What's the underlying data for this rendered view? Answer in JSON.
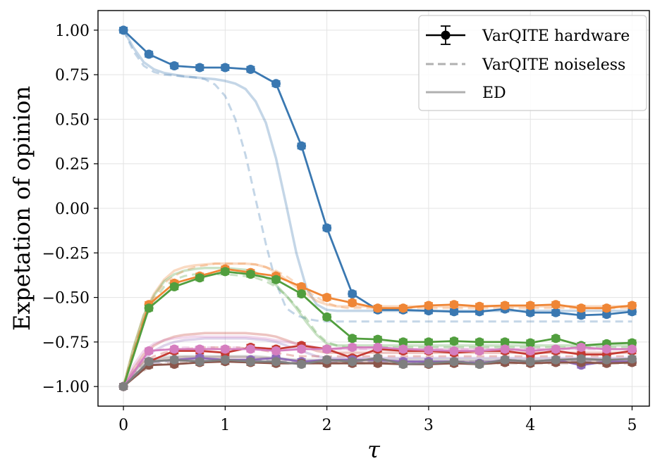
{
  "chart_data": {
    "type": "line",
    "xlabel": "τ",
    "ylabel": "Expetation of opinion",
    "xlim": [
      -0.25,
      5.17
    ],
    "ylim": [
      -1.11,
      1.11
    ],
    "grid": true,
    "x_ticks": [
      {
        "value": 0,
        "label": "0"
      },
      {
        "value": 1,
        "label": "1"
      },
      {
        "value": 2,
        "label": "2"
      },
      {
        "value": 3,
        "label": "3"
      },
      {
        "value": 4,
        "label": "4"
      },
      {
        "value": 5,
        "label": "5"
      }
    ],
    "y_ticks": [
      {
        "value": 1.0,
        "label": "1.00"
      },
      {
        "value": 0.75,
        "label": "0.75"
      },
      {
        "value": 0.5,
        "label": "0.50"
      },
      {
        "value": 0.25,
        "label": "0.25"
      },
      {
        "value": 0.0,
        "label": "0.00"
      },
      {
        "value": -0.25,
        "label": "−0.25"
      },
      {
        "value": -0.5,
        "label": "−0.50"
      },
      {
        "value": -0.75,
        "label": "−0.75"
      },
      {
        "value": -1.0,
        "label": "−1.00"
      }
    ],
    "legend": {
      "placement": "top-right",
      "entries": [
        {
          "label": "VarQITE hardware",
          "style": "marker-errorbar",
          "color": "#000000"
        },
        {
          "label": "VarQITE noiseless",
          "style": "dashed",
          "color": "#b0b0b0"
        },
        {
          "label": "ED",
          "style": "solid-light",
          "color": "#b0b0b0"
        }
      ]
    },
    "x": [
      0,
      0.25,
      0.5,
      0.75,
      1.0,
      1.25,
      1.5,
      1.75,
      2.0,
      2.25,
      2.5,
      2.75,
      3.0,
      3.25,
      3.5,
      3.75,
      4.0,
      4.25,
      4.5,
      4.75,
      5.0
    ],
    "x_dense": [
      0,
      0.1,
      0.2,
      0.3,
      0.4,
      0.5,
      0.6,
      0.7,
      0.8,
      0.9,
      1.0,
      1.1,
      1.2,
      1.3,
      1.4,
      1.5,
      1.6,
      1.7,
      1.8,
      1.9,
      2.0,
      2.1,
      2.2,
      2.3,
      2.4,
      2.5,
      2.75,
      3.0,
      3.5,
      4.0,
      4.5,
      5.0
    ],
    "series": [
      {
        "color": "#3a78b1",
        "hardware": [
          1.0,
          0.865,
          0.8,
          0.79,
          0.79,
          0.78,
          0.7,
          0.35,
          -0.11,
          -0.48,
          -0.57,
          -0.57,
          -0.575,
          -0.58,
          -0.58,
          -0.565,
          -0.585,
          -0.585,
          -0.6,
          -0.595,
          -0.58
        ],
        "noiseless": [
          1.0,
          0.88,
          0.8,
          0.765,
          0.75,
          0.745,
          0.74,
          0.735,
          0.725,
          0.695,
          0.63,
          0.5,
          0.3,
          0.05,
          -0.2,
          -0.42,
          -0.56,
          -0.6,
          -0.62,
          -0.63,
          -0.635,
          -0.635,
          -0.635,
          -0.635,
          -0.635,
          -0.635,
          -0.635,
          -0.635,
          -0.635,
          -0.635,
          -0.635,
          -0.635
        ],
        "ed": [
          1.0,
          0.9,
          0.82,
          0.78,
          0.76,
          0.75,
          0.74,
          0.735,
          0.73,
          0.725,
          0.715,
          0.7,
          0.67,
          0.6,
          0.48,
          0.28,
          0.02,
          -0.25,
          -0.45,
          -0.54,
          -0.57,
          -0.575,
          -0.575,
          -0.575,
          -0.575,
          -0.575,
          -0.575,
          -0.575,
          -0.575,
          -0.575,
          -0.575,
          -0.575
        ]
      },
      {
        "color": "#ef8636",
        "hardware": [
          -1.0,
          -0.54,
          -0.42,
          -0.38,
          -0.34,
          -0.36,
          -0.38,
          -0.44,
          -0.5,
          -0.53,
          -0.56,
          -0.56,
          -0.545,
          -0.54,
          -0.55,
          -0.545,
          -0.545,
          -0.54,
          -0.56,
          -0.56,
          -0.545
        ],
        "noiseless": [
          -1.0,
          -0.8,
          -0.62,
          -0.5,
          -0.42,
          -0.38,
          -0.35,
          -0.33,
          -0.32,
          -0.31,
          -0.31,
          -0.31,
          -0.31,
          -0.315,
          -0.33,
          -0.35,
          -0.38,
          -0.42,
          -0.46,
          -0.5,
          -0.53,
          -0.55,
          -0.56,
          -0.56,
          -0.56,
          -0.56,
          -0.56,
          -0.56,
          -0.56,
          -0.56,
          -0.56,
          -0.56
        ],
        "ed": [
          -1.0,
          -0.78,
          -0.6,
          -0.48,
          -0.4,
          -0.35,
          -0.33,
          -0.32,
          -0.315,
          -0.31,
          -0.31,
          -0.31,
          -0.31,
          -0.315,
          -0.33,
          -0.36,
          -0.4,
          -0.44,
          -0.48,
          -0.52,
          -0.54,
          -0.55,
          -0.55,
          -0.55,
          -0.55,
          -0.55,
          -0.55,
          -0.55,
          -0.55,
          -0.55,
          -0.55,
          -0.55
        ]
      },
      {
        "color": "#519e3e",
        "hardware": [
          -1.0,
          -0.56,
          -0.44,
          -0.39,
          -0.355,
          -0.37,
          -0.4,
          -0.48,
          -0.61,
          -0.73,
          -0.735,
          -0.75,
          -0.75,
          -0.745,
          -0.75,
          -0.75,
          -0.755,
          -0.73,
          -0.77,
          -0.76,
          -0.755
        ],
        "noiseless": [
          -1.0,
          -0.8,
          -0.63,
          -0.52,
          -0.44,
          -0.4,
          -0.38,
          -0.37,
          -0.37,
          -0.37,
          -0.37,
          -0.375,
          -0.38,
          -0.39,
          -0.41,
          -0.44,
          -0.49,
          -0.55,
          -0.62,
          -0.7,
          -0.75,
          -0.77,
          -0.78,
          -0.78,
          -0.78,
          -0.78,
          -0.78,
          -0.78,
          -0.78,
          -0.78,
          -0.78,
          -0.78
        ],
        "ed": [
          -1.0,
          -0.78,
          -0.6,
          -0.49,
          -0.41,
          -0.37,
          -0.35,
          -0.34,
          -0.335,
          -0.335,
          -0.335,
          -0.34,
          -0.345,
          -0.36,
          -0.39,
          -0.43,
          -0.49,
          -0.56,
          -0.64,
          -0.71,
          -0.76,
          -0.77,
          -0.77,
          -0.77,
          -0.77,
          -0.77,
          -0.77,
          -0.77,
          -0.77,
          -0.77,
          -0.77,
          -0.77
        ]
      },
      {
        "color": "#c53a32",
        "hardware": [
          -1.0,
          -0.86,
          -0.8,
          -0.8,
          -0.81,
          -0.78,
          -0.79,
          -0.77,
          -0.79,
          -0.84,
          -0.79,
          -0.8,
          -0.8,
          -0.81,
          -0.8,
          -0.8,
          -0.82,
          -0.8,
          -0.82,
          -0.82,
          -0.8
        ],
        "noiseless": [
          -1.0,
          -0.92,
          -0.86,
          -0.83,
          -0.81,
          -0.8,
          -0.79,
          -0.785,
          -0.78,
          -0.78,
          -0.78,
          -0.78,
          -0.785,
          -0.79,
          -0.8,
          -0.81,
          -0.82,
          -0.83,
          -0.83,
          -0.83,
          -0.83,
          -0.83,
          -0.83,
          -0.83,
          -0.83,
          -0.83,
          -0.83,
          -0.83,
          -0.83,
          -0.83,
          -0.83,
          -0.83
        ],
        "ed": [
          -1.0,
          -0.9,
          -0.82,
          -0.77,
          -0.74,
          -0.72,
          -0.71,
          -0.705,
          -0.7,
          -0.7,
          -0.7,
          -0.7,
          -0.7,
          -0.705,
          -0.71,
          -0.72,
          -0.74,
          -0.76,
          -0.78,
          -0.8,
          -0.81,
          -0.81,
          -0.81,
          -0.81,
          -0.81,
          -0.81,
          -0.81,
          -0.81,
          -0.81,
          -0.81,
          -0.81,
          -0.81
        ]
      },
      {
        "color": "#8d69b8",
        "hardware": [
          -1.0,
          -0.86,
          -0.85,
          -0.84,
          -0.85,
          -0.85,
          -0.84,
          -0.86,
          -0.85,
          -0.85,
          -0.85,
          -0.86,
          -0.86,
          -0.86,
          -0.87,
          -0.85,
          -0.86,
          -0.85,
          -0.88,
          -0.86,
          -0.86
        ],
        "noiseless": [
          -1.0,
          -0.94,
          -0.89,
          -0.87,
          -0.86,
          -0.855,
          -0.85,
          -0.85,
          -0.85,
          -0.85,
          -0.85,
          -0.85,
          -0.85,
          -0.85,
          -0.855,
          -0.86,
          -0.86,
          -0.86,
          -0.86,
          -0.86,
          -0.86,
          -0.86,
          -0.86,
          -0.86,
          -0.86,
          -0.86,
          -0.86,
          -0.86,
          -0.86,
          -0.86,
          -0.86,
          -0.86
        ],
        "ed": [
          -1.0,
          -0.92,
          -0.85,
          -0.8,
          -0.77,
          -0.75,
          -0.74,
          -0.735,
          -0.73,
          -0.73,
          -0.73,
          -0.73,
          -0.73,
          -0.735,
          -0.74,
          -0.75,
          -0.77,
          -0.79,
          -0.81,
          -0.83,
          -0.84,
          -0.84,
          -0.84,
          -0.84,
          -0.84,
          -0.84,
          -0.84,
          -0.84,
          -0.84,
          -0.84,
          -0.84,
          -0.84
        ]
      },
      {
        "color": "#8b564b",
        "hardware": [
          -1.0,
          -0.88,
          -0.875,
          -0.865,
          -0.86,
          -0.865,
          -0.87,
          -0.87,
          -0.87,
          -0.87,
          -0.87,
          -0.875,
          -0.875,
          -0.87,
          -0.875,
          -0.865,
          -0.87,
          -0.865,
          -0.865,
          -0.87,
          -0.865
        ],
        "noiseless": [
          -1.0,
          -0.95,
          -0.91,
          -0.88,
          -0.87,
          -0.865,
          -0.86,
          -0.86,
          -0.86,
          -0.86,
          -0.86,
          -0.86,
          -0.86,
          -0.865,
          -0.865,
          -0.87,
          -0.87,
          -0.87,
          -0.87,
          -0.87,
          -0.87,
          -0.87,
          -0.87,
          -0.87,
          -0.87,
          -0.87,
          -0.87,
          -0.87,
          -0.87,
          -0.87,
          -0.87,
          -0.87
        ],
        "ed": [
          -1.0,
          -0.94,
          -0.89,
          -0.86,
          -0.845,
          -0.84,
          -0.835,
          -0.835,
          -0.835,
          -0.835,
          -0.835,
          -0.835,
          -0.835,
          -0.84,
          -0.84,
          -0.845,
          -0.85,
          -0.855,
          -0.86,
          -0.86,
          -0.86,
          -0.86,
          -0.86,
          -0.86,
          -0.86,
          -0.86,
          -0.86,
          -0.86,
          -0.86,
          -0.86,
          -0.86,
          -0.86
        ]
      },
      {
        "color": "#d57ebf",
        "hardware": [
          -1.0,
          -0.8,
          -0.79,
          -0.79,
          -0.79,
          -0.79,
          -0.8,
          -0.79,
          -0.79,
          -0.78,
          -0.78,
          -0.79,
          -0.795,
          -0.8,
          -0.8,
          -0.79,
          -0.8,
          -0.79,
          -0.78,
          -0.79,
          -0.79
        ],
        "noiseless": [
          -1.0,
          -0.9,
          -0.83,
          -0.8,
          -0.79,
          -0.785,
          -0.78,
          -0.78,
          -0.78,
          -0.78,
          -0.78,
          -0.78,
          -0.78,
          -0.78,
          -0.785,
          -0.79,
          -0.79,
          -0.79,
          -0.79,
          -0.79,
          -0.79,
          -0.79,
          -0.79,
          -0.79,
          -0.79,
          -0.79,
          -0.79,
          -0.79,
          -0.79,
          -0.79,
          -0.79,
          -0.79
        ],
        "ed": [
          -1.0,
          -0.88,
          -0.8,
          -0.76,
          -0.74,
          -0.73,
          -0.725,
          -0.72,
          -0.72,
          -0.72,
          -0.72,
          -0.72,
          -0.72,
          -0.725,
          -0.73,
          -0.74,
          -0.75,
          -0.76,
          -0.77,
          -0.78,
          -0.79,
          -0.79,
          -0.79,
          -0.79,
          -0.79,
          -0.79,
          -0.79,
          -0.79,
          -0.79,
          -0.79,
          -0.79,
          -0.79
        ]
      },
      {
        "color": "#7f7f7f",
        "hardware": [
          -1.0,
          -0.86,
          -0.85,
          -0.86,
          -0.85,
          -0.86,
          -0.86,
          -0.875,
          -0.85,
          -0.86,
          -0.84,
          -0.875,
          -0.87,
          -0.86,
          -0.875,
          -0.85,
          -0.86,
          -0.85,
          -0.845,
          -0.85,
          -0.845
        ],
        "noiseless": [
          -1.0,
          -0.93,
          -0.88,
          -0.865,
          -0.86,
          -0.855,
          -0.855,
          -0.855,
          -0.855,
          -0.855,
          -0.855,
          -0.855,
          -0.855,
          -0.855,
          -0.855,
          -0.86,
          -0.86,
          -0.86,
          -0.86,
          -0.86,
          -0.86,
          -0.86,
          -0.86,
          -0.86,
          -0.86,
          -0.86,
          -0.86,
          -0.86,
          -0.86,
          -0.86,
          -0.86,
          -0.86
        ],
        "ed": [
          -1.0,
          -0.92,
          -0.87,
          -0.845,
          -0.835,
          -0.83,
          -0.83,
          -0.83,
          -0.83,
          -0.83,
          -0.83,
          -0.83,
          -0.83,
          -0.83,
          -0.835,
          -0.84,
          -0.845,
          -0.85,
          -0.85,
          -0.85,
          -0.85,
          -0.85,
          -0.85,
          -0.85,
          -0.85,
          -0.85,
          -0.85,
          -0.85,
          -0.85,
          -0.85,
          -0.85,
          -0.85
        ]
      }
    ]
  }
}
